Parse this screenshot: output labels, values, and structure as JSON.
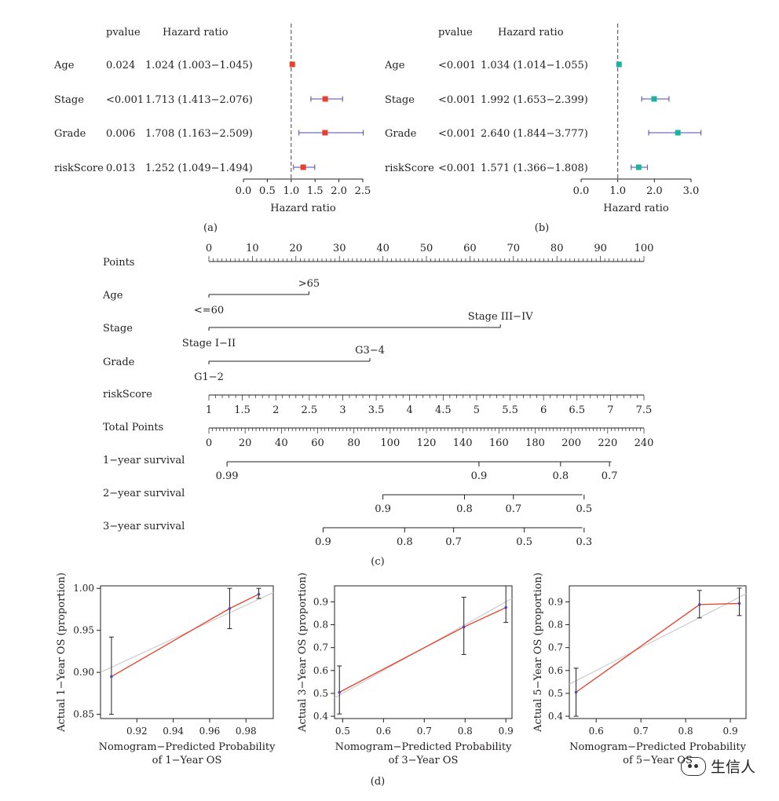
{
  "panel_labels": {
    "a": "(a)",
    "b": "(b)",
    "c": "(c)",
    "d": "(d)"
  },
  "watermark": "生信人",
  "colors": {
    "forest_a_point": "#e8402a",
    "forest_b_point": "#1ab3a0",
    "ci_line": "#4b47b5",
    "calib_line": "#e8402a",
    "ideal_line": "#cccccc",
    "text": "#231f20"
  },
  "chart_data": [
    {
      "id": "a",
      "type": "forest",
      "header": {
        "pvalue": "pvalue",
        "hr": "Hazard ratio"
      },
      "xlabel": "Hazard ratio",
      "xlim": [
        0,
        2.5
      ],
      "ticks": [
        {
          "v": 0,
          "t": "0.0"
        },
        {
          "v": 0.5,
          "t": "0.5"
        },
        {
          "v": 1,
          "t": "1.0"
        },
        {
          "v": 1.5,
          "t": "1.5"
        },
        {
          "v": 2,
          "t": "2.0"
        },
        {
          "v": 2.5,
          "t": "2.5"
        }
      ],
      "ref": 1,
      "rows": [
        {
          "label": "Age",
          "pvalue": "0.024",
          "hr_text": "1.024 (1.003−1.045)",
          "hr": 1.024,
          "lo": 1.003,
          "hi": 1.045
        },
        {
          "label": "Stage",
          "pvalue": "<0.001",
          "hr_text": "1.713 (1.413−2.076)",
          "hr": 1.713,
          "lo": 1.413,
          "hi": 2.076
        },
        {
          "label": "Grade",
          "pvalue": "0.006",
          "hr_text": "1.708 (1.163−2.509)",
          "hr": 1.708,
          "lo": 1.163,
          "hi": 2.509
        },
        {
          "label": "riskScore",
          "pvalue": "0.013",
          "hr_text": "1.252 (1.049−1.494)",
          "hr": 1.252,
          "lo": 1.049,
          "hi": 1.494
        }
      ]
    },
    {
      "id": "b",
      "type": "forest",
      "header": {
        "pvalue": "pvalue",
        "hr": "Hazard ratio"
      },
      "xlabel": "Hazard ratio",
      "xlim": [
        0,
        3
      ],
      "ticks": [
        {
          "v": 0,
          "t": "0.0"
        },
        {
          "v": 1,
          "t": "1.0"
        },
        {
          "v": 2,
          "t": "2.0"
        },
        {
          "v": 3,
          "t": "3.0"
        }
      ],
      "ref": 1,
      "rows": [
        {
          "label": "Age",
          "pvalue": "<0.001",
          "hr_text": "1.034 (1.014−1.055)",
          "hr": 1.034,
          "lo": 1.014,
          "hi": 1.055
        },
        {
          "label": "Stage",
          "pvalue": "<0.001",
          "hr_text": "1.992 (1.653−2.399)",
          "hr": 1.992,
          "lo": 1.653,
          "hi": 2.399
        },
        {
          "label": "Grade",
          "pvalue": "<0.001",
          "hr_text": "2.640 (1.844−3.777)",
          "hr": 2.64,
          "lo": 1.844,
          "hi": 3.777
        },
        {
          "label": "riskScore",
          "pvalue": "<0.001",
          "hr_text": "1.571 (1.366−1.808)",
          "hr": 1.571,
          "lo": 1.366,
          "hi": 1.808
        }
      ]
    },
    {
      "id": "c",
      "type": "nomogram",
      "points_axis": {
        "label": "Points",
        "range": [
          0,
          100
        ],
        "labels": [
          "0",
          "10",
          "20",
          "30",
          "40",
          "50",
          "60",
          "70",
          "80",
          "90",
          "100"
        ]
      },
      "variables": [
        {
          "label": "Age",
          "points": [
            0,
            23
          ],
          "levels": [
            {
              "t": "<=60",
              "p": 0
            },
            {
              "t": ">65",
              "p": 23
            }
          ]
        },
        {
          "label": "Stage",
          "points": [
            0,
            67
          ],
          "levels": [
            {
              "t": "Stage I−II",
              "p": 0
            },
            {
              "t": "Stage III−IV",
              "p": 67
            }
          ]
        },
        {
          "label": "Grade",
          "points": [
            0,
            37
          ],
          "levels": [
            {
              "t": "G1−2",
              "p": 0
            },
            {
              "t": "G3−4",
              "p": 37
            }
          ]
        }
      ],
      "riskScore": {
        "label": "riskScore",
        "values": [
          "1",
          "1.5",
          "2",
          "2.5",
          "3",
          "3.5",
          "4",
          "4.5",
          "5",
          "5.5",
          "6",
          "6.5",
          "7",
          "7.5"
        ]
      },
      "total_points": {
        "label": "Total Points",
        "range": [
          0,
          240
        ],
        "labels": [
          "0",
          "20",
          "40",
          "60",
          "80",
          "100",
          "120",
          "140",
          "160",
          "180",
          "200",
          "220",
          "240"
        ]
      },
      "survival": [
        {
          "label": "1−year survival",
          "tp_range": [
            10,
            222
          ],
          "ticks": [
            {
              "t": "0.99",
              "tp": 10
            },
            {
              "t": "0.9",
              "tp": 149
            },
            {
              "t": "0.8",
              "tp": 194
            },
            {
              "t": "0.7",
              "tp": 221
            }
          ]
        },
        {
          "label": "2−year survival",
          "tp_range": [
            96,
            206
          ],
          "ticks": [
            {
              "t": "0.9",
              "tp": 96
            },
            {
              "t": "0.8",
              "tp": 141
            },
            {
              "t": "0.7",
              "tp": 168
            },
            {
              "t": "0.5",
              "tp": 207
            }
          ]
        },
        {
          "label": "3−year survival",
          "tp_range": [
            63,
            206
          ],
          "ticks": [
            {
              "t": "0.9",
              "tp": 63
            },
            {
              "t": "0.8",
              "tp": 108
            },
            {
              "t": "0.7",
              "tp": 135
            },
            {
              "t": "0.5",
              "tp": 174
            },
            {
              "t": "0.3",
              "tp": 207
            }
          ]
        }
      ]
    },
    {
      "id": "d1",
      "type": "calibration",
      "ylabel": "Actual 1−Year OS (proportion)",
      "xlabel": [
        "Nomogram−Predicted Probability",
        "of 1−Year OS"
      ],
      "xlim": [
        0.9,
        0.995
      ],
      "ylim": [
        0.845,
        1.003
      ],
      "xticks": [
        {
          "v": 0.92,
          "t": "0.92"
        },
        {
          "v": 0.94,
          "t": "0.94"
        },
        {
          "v": 0.96,
          "t": "0.96"
        },
        {
          "v": 0.98,
          "t": "0.98"
        }
      ],
      "yticks": [
        {
          "v": 0.85,
          "t": "0.85"
        },
        {
          "v": 0.9,
          "t": "0.90"
        },
        {
          "v": 0.95,
          "t": "0.95"
        },
        {
          "v": 1.0,
          "t": "1.00"
        }
      ],
      "points": [
        {
          "x": 0.906,
          "y": 0.895,
          "lo": 0.85,
          "hi": 0.942
        },
        {
          "x": 0.971,
          "y": 0.976,
          "lo": 0.952,
          "hi": 1.0
        },
        {
          "x": 0.987,
          "y": 0.993,
          "lo": 0.988,
          "hi": 1.0
        }
      ]
    },
    {
      "id": "d2",
      "type": "calibration",
      "ylabel": "Actual 3−Year OS (proportion)",
      "xlabel": [
        "Nomogram−Predicted Probability",
        "of 3−Year OS"
      ],
      "xlim": [
        0.48,
        0.915
      ],
      "ylim": [
        0.39,
        0.97
      ],
      "xticks": [
        {
          "v": 0.5,
          "t": "0.5"
        },
        {
          "v": 0.6,
          "t": "0.6"
        },
        {
          "v": 0.7,
          "t": "0.7"
        },
        {
          "v": 0.8,
          "t": "0.8"
        },
        {
          "v": 0.9,
          "t": "0.9"
        }
      ],
      "yticks": [
        {
          "v": 0.4,
          "t": "0.4"
        },
        {
          "v": 0.5,
          "t": "0.5"
        },
        {
          "v": 0.6,
          "t": "0.6"
        },
        {
          "v": 0.7,
          "t": "0.7"
        },
        {
          "v": 0.8,
          "t": "0.8"
        },
        {
          "v": 0.9,
          "t": "0.9"
        }
      ],
      "points": [
        {
          "x": 0.492,
          "y": 0.505,
          "lo": 0.41,
          "hi": 0.62
        },
        {
          "x": 0.797,
          "y": 0.79,
          "lo": 0.67,
          "hi": 0.92
        },
        {
          "x": 0.9,
          "y": 0.875,
          "lo": 0.81,
          "hi": 0.97
        }
      ]
    },
    {
      "id": "d3",
      "type": "calibration",
      "ylabel": "Actual 5−Year OS (proportion)",
      "xlabel": [
        "Nomogram−Predicted Probability",
        "of 5−Year OS"
      ],
      "xlim": [
        0.54,
        0.935
      ],
      "ylim": [
        0.39,
        0.97
      ],
      "xticks": [
        {
          "v": 0.6,
          "t": "0.6"
        },
        {
          "v": 0.7,
          "t": "0.7"
        },
        {
          "v": 0.8,
          "t": "0.8"
        },
        {
          "v": 0.9,
          "t": "0.9"
        }
      ],
      "yticks": [
        {
          "v": 0.4,
          "t": "0.4"
        },
        {
          "v": 0.5,
          "t": "0.5"
        },
        {
          "v": 0.6,
          "t": "0.6"
        },
        {
          "v": 0.7,
          "t": "0.7"
        },
        {
          "v": 0.8,
          "t": "0.8"
        },
        {
          "v": 0.9,
          "t": "0.9"
        }
      ],
      "points": [
        {
          "x": 0.555,
          "y": 0.505,
          "lo": 0.4,
          "hi": 0.61
        },
        {
          "x": 0.831,
          "y": 0.888,
          "lo": 0.83,
          "hi": 0.95
        },
        {
          "x": 0.92,
          "y": 0.893,
          "lo": 0.84,
          "hi": 0.96
        }
      ]
    }
  ]
}
